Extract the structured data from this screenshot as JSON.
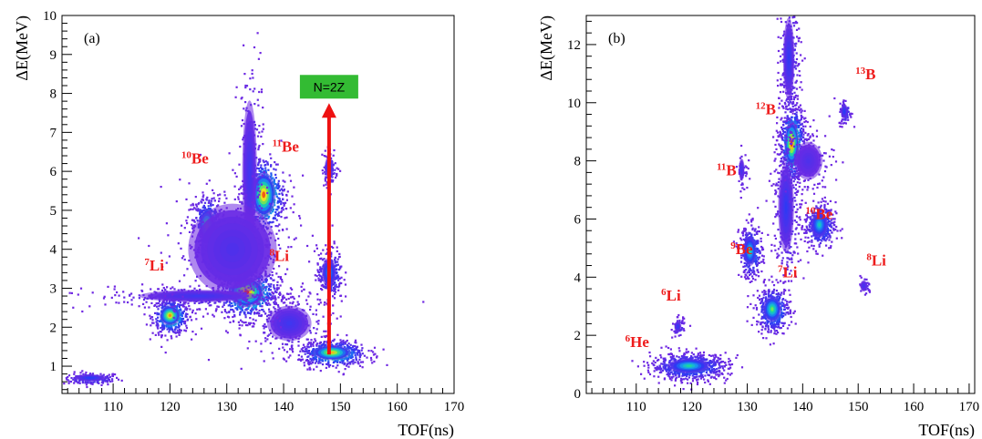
{
  "chart_data": [
    {
      "type": "heatmap",
      "panel_label": "(a)",
      "xlabel": "TOF(ns)",
      "ylabel": "ΔE(MeV)",
      "xlim": [
        101,
        170
      ],
      "ylim": [
        0.3,
        10
      ],
      "x_ticks": [
        110,
        120,
        130,
        140,
        150,
        160,
        170
      ],
      "y_ticks": [
        1,
        2,
        3,
        4,
        5,
        6,
        7,
        8,
        9,
        10
      ],
      "clusters": [
        {
          "x": 106,
          "y": 0.7,
          "sx": 2.2,
          "sy": 0.07,
          "n": 160,
          "peak": 0.25
        },
        {
          "x": 120,
          "y": 2.3,
          "sx": 1.4,
          "sy": 0.2,
          "n": 420,
          "peak": 0.9
        },
        {
          "x": 126.5,
          "y": 4.6,
          "sx": 1.1,
          "sy": 0.35,
          "n": 420,
          "peak": 0.75
        },
        {
          "x": 133.5,
          "y": 2.9,
          "sx": 2.4,
          "sy": 0.3,
          "n": 700,
          "peak": 1.0
        },
        {
          "x": 136.5,
          "y": 5.4,
          "sx": 1.6,
          "sy": 0.45,
          "n": 520,
          "peak": 0.95
        },
        {
          "x": 148,
          "y": 3.4,
          "sx": 1.0,
          "sy": 0.3,
          "n": 230,
          "peak": 0.4
        },
        {
          "x": 148,
          "y": 6.1,
          "sx": 0.6,
          "sy": 0.22,
          "n": 90,
          "peak": 0.25
        },
        {
          "x": 148.5,
          "y": 1.35,
          "sx": 2.6,
          "sy": 0.15,
          "n": 520,
          "peak": 0.85
        },
        {
          "x": 125,
          "y": 2.8,
          "sx": 8.0,
          "sy": 0.12,
          "n": 280,
          "peak": 0.15
        },
        {
          "x": 134,
          "y": 6.0,
          "sx": 1.0,
          "sy": 1.4,
          "n": 200,
          "peak": 0.15
        },
        {
          "x": 141,
          "y": 2.1,
          "sx": 3.0,
          "sy": 0.35,
          "n": 200,
          "peak": 0.15
        },
        {
          "x": 131,
          "y": 4.0,
          "sx": 6.0,
          "sy": 0.9,
          "n": 240,
          "peak": 0.1
        }
      ],
      "isotopes": [
        {
          "mass": "7",
          "symbol": "Li",
          "x": 115.5,
          "y": 3.45
        },
        {
          "mass": "10",
          "symbol": "Be",
          "x": 122,
          "y": 6.2
        },
        {
          "mass": "11",
          "symbol": "Be",
          "x": 138,
          "y": 6.5
        },
        {
          "mass": "8",
          "symbol": "Li",
          "x": 137.5,
          "y": 3.7
        }
      ],
      "annotation": {
        "text": "N=2Z",
        "arrow_x": 148,
        "arrow_from_y": 1.3,
        "arrow_to_y": 7.75
      }
    },
    {
      "type": "heatmap",
      "panel_label": "(b)",
      "xlabel": "TOF(ns)",
      "ylabel": "ΔE(MeV)",
      "xlim": [
        101,
        171
      ],
      "ylim": [
        0,
        13
      ],
      "x_ticks": [
        110,
        120,
        130,
        140,
        150,
        160,
        170
      ],
      "y_ticks": [
        0,
        2,
        4,
        6,
        8,
        10,
        12
      ],
      "clusters": [
        {
          "x": 119.5,
          "y": 0.95,
          "sx": 3.0,
          "sy": 0.2,
          "n": 700,
          "peak": 0.55
        },
        {
          "x": 117.5,
          "y": 2.3,
          "sx": 0.5,
          "sy": 0.15,
          "n": 50,
          "peak": 0.2
        },
        {
          "x": 130.5,
          "y": 4.9,
          "sx": 0.9,
          "sy": 0.4,
          "n": 320,
          "peak": 0.55
        },
        {
          "x": 134.5,
          "y": 2.9,
          "sx": 1.3,
          "sy": 0.35,
          "n": 400,
          "peak": 0.65
        },
        {
          "x": 138,
          "y": 8.6,
          "sx": 1.0,
          "sy": 0.6,
          "n": 650,
          "peak": 1.0
        },
        {
          "x": 137.5,
          "y": 11.5,
          "sx": 0.8,
          "sy": 1.1,
          "n": 260,
          "peak": 0.2
        },
        {
          "x": 137,
          "y": 6.4,
          "sx": 1.1,
          "sy": 1.2,
          "n": 300,
          "peak": 0.2
        },
        {
          "x": 143,
          "y": 5.8,
          "sx": 1.2,
          "sy": 0.35,
          "n": 350,
          "peak": 0.5
        },
        {
          "x": 147.5,
          "y": 9.7,
          "sx": 0.5,
          "sy": 0.2,
          "n": 70,
          "peak": 0.25
        },
        {
          "x": 129,
          "y": 7.7,
          "sx": 0.4,
          "sy": 0.3,
          "n": 45,
          "peak": 0.15
        },
        {
          "x": 151,
          "y": 3.7,
          "sx": 0.5,
          "sy": 0.15,
          "n": 30,
          "peak": 0.15
        },
        {
          "x": 141,
          "y": 8.0,
          "sx": 2.0,
          "sy": 0.5,
          "n": 120,
          "peak": 0.1
        }
      ],
      "isotopes": [
        {
          "mass": "6",
          "symbol": "He",
          "x": 108,
          "y": 1.6
        },
        {
          "mass": "6",
          "symbol": "Li",
          "x": 114.5,
          "y": 3.2
        },
        {
          "mass": "9",
          "symbol": "Be",
          "x": 127,
          "y": 4.8
        },
        {
          "mass": "7",
          "symbol": "Li",
          "x": 135.5,
          "y": 4.0
        },
        {
          "mass": "11",
          "symbol": "B",
          "x": 124.5,
          "y": 7.5
        },
        {
          "mass": "12",
          "symbol": "B",
          "x": 131.5,
          "y": 9.6
        },
        {
          "mass": "13",
          "symbol": "B",
          "x": 149.5,
          "y": 10.8
        },
        {
          "mass": "10",
          "symbol": "Be",
          "x": 140.5,
          "y": 6.0
        },
        {
          "mass": "8",
          "symbol": "Li",
          "x": 151.5,
          "y": 4.4
        }
      ]
    }
  ]
}
